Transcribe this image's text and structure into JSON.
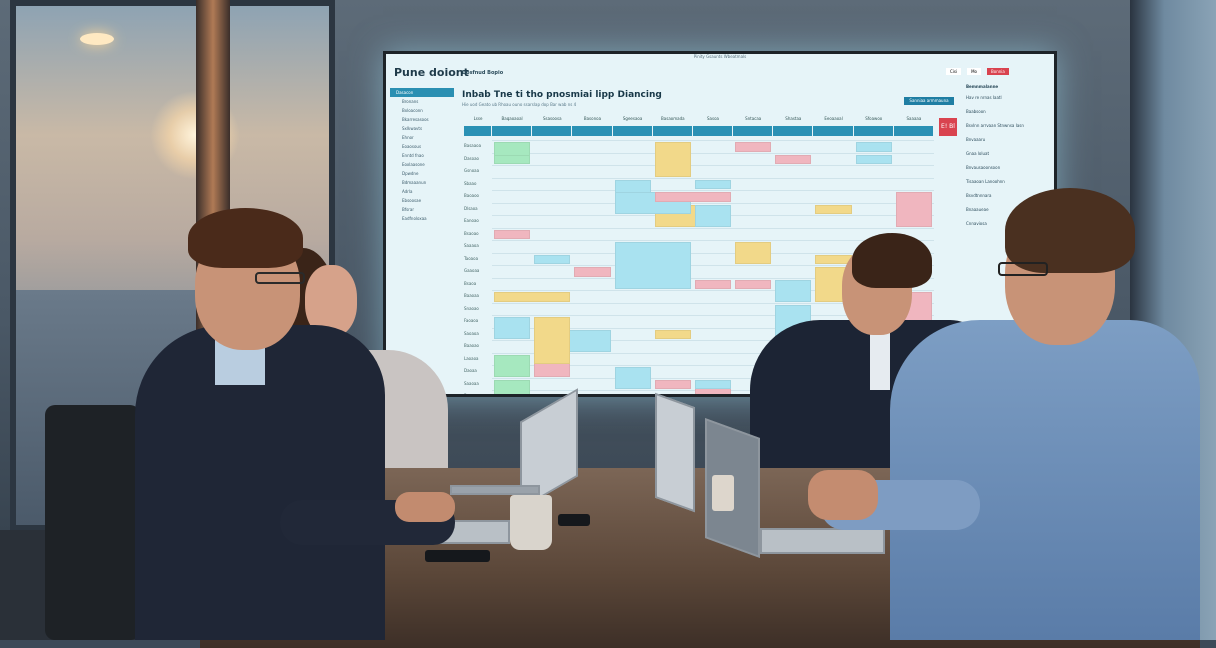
{
  "screen": {
    "topbar_text": "Pinity Gsaunts Wbeatmals",
    "brand": "Pune doiont",
    "breadcrumb": "Dosfnud Bopio",
    "page_title": "Inbab Tne ti tho pnosmiai lipp Diancing",
    "subtitle": "Hie uod Geato ub Rhoau ouno   ssarslap   dop  Bar  wab  ns 4",
    "action_button": "Sanniaa armmauna",
    "header_actions": [
      "Cisi",
      "Mo",
      "Bonnia"
    ],
    "sidebar_items": [
      "Dasacon",
      "Bronans",
      "Bxloaconn",
      "Bkarresasoos",
      "Sxlkwavts",
      "Ehnor",
      "Eoaosous",
      "Enntd fnao",
      "Eoxlaasone",
      "Dpwdne",
      "Bdmaaanun",
      "Adrla",
      "Ebsoosae",
      "Bfsrar",
      "Eadfnoloxaa"
    ],
    "column_headers": [
      "Lsse",
      "Baqaoaoal",
      "Ssasoosa",
      "Basonoa",
      "Sgeesaoa",
      "Basaomada",
      "Sasoa",
      "Sntacaa",
      "Shastaa",
      "Eeoaaoal",
      "Sfoawoo",
      "Saaaaa"
    ],
    "row_labels": [
      "Basaaoa",
      "Dasoao",
      "Gsnoaa",
      "Sbaao",
      "Baoaoo",
      "Dlsaoa",
      "Eanoao",
      "Bsaoao",
      "Saaaoa",
      "Taoaoa",
      "Gaaoaa",
      "Bsaoa",
      "Baaoaa",
      "Snaoao",
      "Faoaoa",
      "Saoaoa",
      "Baaoao",
      "Laoaoa",
      "Daoaa",
      "Saaoaa",
      "Baoa"
    ],
    "right_panel": {
      "title": "Bemnmalanne",
      "items": [
        "Hav re nrnas Iaatl",
        "Baabsoon",
        "Bsvlnn arrvaan Stnwnsa Iasn",
        "Bnvaaaru",
        "Gnaa loluat",
        "Bnvausaoonsoon",
        "Tisaaoan Lanoohnn",
        "Bsvdtnnnara",
        "Bnaaaueae",
        "Cnnaviosa"
      ]
    },
    "badge": "E! Bl",
    "cell_colors": {
      "blue": "#a9e2f0",
      "yellow": "#f2d98a",
      "pink": "#f0b6bf",
      "green": "#a6e8bf",
      "header": "#2a91b5"
    }
  }
}
